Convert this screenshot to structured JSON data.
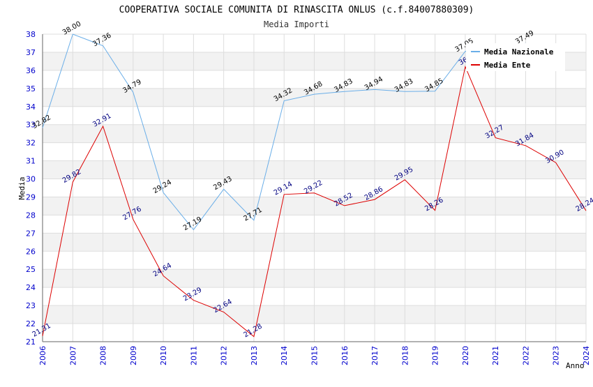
{
  "chart_data": {
    "type": "line",
    "title": "COOPERATIVA SOCIALE COMUNITA DI RINASCITA ONLUS (c.f.84007880309)",
    "subtitle": "Media Importi",
    "xlabel": "Anno",
    "ylabel": "Media",
    "ylim": [
      21,
      38
    ],
    "yticks": [
      21,
      22,
      23,
      24,
      25,
      26,
      27,
      28,
      29,
      30,
      31,
      32,
      33,
      34,
      35,
      36,
      37,
      38
    ],
    "categories": [
      "2006",
      "2007",
      "2008",
      "2009",
      "2010",
      "2011",
      "2012",
      "2013",
      "2014",
      "2015",
      "2016",
      "2017",
      "2018",
      "2019",
      "2020",
      "2021",
      "2022",
      "2023",
      "2024"
    ],
    "grid": true,
    "legend_position": "top-right",
    "series": [
      {
        "name": "Media Nazionale",
        "color": "#6aaee8",
        "label_color": "#000000",
        "values": [
          32.82,
          38.0,
          37.36,
          34.79,
          29.24,
          27.19,
          29.43,
          27.71,
          34.32,
          34.68,
          34.83,
          34.94,
          34.83,
          34.85,
          37.05,
          null,
          37.49,
          null,
          null
        ],
        "labels": [
          "32.82",
          "38.00",
          "37.36",
          "34.79",
          "29.24",
          "27.19",
          "29.43",
          "27.71",
          "34.32",
          "34.68",
          "34.83",
          "34.94",
          "34.83",
          "34.85",
          "37.05",
          null,
          "37.49",
          null,
          null
        ]
      },
      {
        "name": "Media Ente",
        "color": "#dd0000",
        "label_color": "#000080",
        "values": [
          21.31,
          29.82,
          32.91,
          27.76,
          24.64,
          23.29,
          22.64,
          21.28,
          29.14,
          29.22,
          28.52,
          28.86,
          29.95,
          28.26,
          36.2,
          32.27,
          31.84,
          30.9,
          28.24
        ],
        "labels": [
          "21.31",
          "29.82",
          "32.91",
          "27.76",
          "24.64",
          "23.29",
          "22.64",
          "21.28",
          "29.14",
          "29.22",
          "28.52",
          "28.86",
          "29.95",
          "28.26",
          "36.",
          "32.27",
          "31.84",
          "30.90",
          "28.24"
        ]
      }
    ]
  }
}
